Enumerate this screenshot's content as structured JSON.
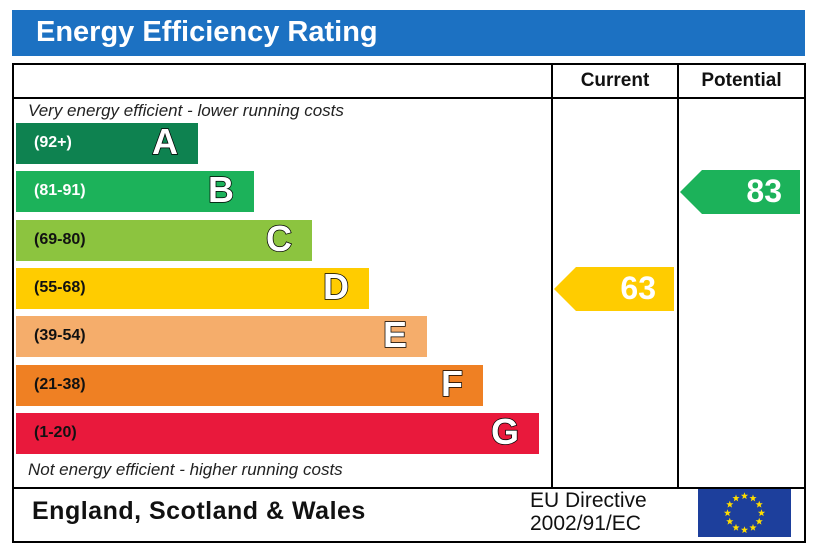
{
  "title": "Energy Efficiency Rating",
  "columns": {
    "current": "Current",
    "potential": "Potential"
  },
  "notes": {
    "top": "Very energy efficient - lower running costs",
    "bottom": "Not energy efficient - higher running costs"
  },
  "footer": {
    "region": "England, Scotland & Wales",
    "directive_line1": "EU Directive",
    "directive_line2": "2002/91/EC",
    "flag_icon": "eu-flag-icon"
  },
  "chart_data": {
    "type": "bar",
    "bands": [
      {
        "letter": "A",
        "range": "(92+)",
        "color": "#0e8250",
        "range_color": "#ffffff"
      },
      {
        "letter": "B",
        "range": "(81-91)",
        "color": "#1cb25a",
        "range_color": "#ffffff"
      },
      {
        "letter": "C",
        "range": "(69-80)",
        "color": "#8cc43f",
        "range_color": "#111111"
      },
      {
        "letter": "D",
        "range": "(55-68)",
        "color": "#ffcc00",
        "range_color": "#111111"
      },
      {
        "letter": "E",
        "range": "(39-54)",
        "color": "#f5ad6b",
        "range_color": "#111111"
      },
      {
        "letter": "F",
        "range": "(21-38)",
        "color": "#ef8023",
        "range_color": "#111111"
      },
      {
        "letter": "G",
        "range": "(1-20)",
        "color": "#e9193c",
        "range_color": "#111111"
      }
    ],
    "current": {
      "value": "63",
      "band": "D",
      "color": "#ffcc00"
    },
    "potential": {
      "value": "83",
      "band": "B",
      "color": "#1cb25a"
    }
  }
}
